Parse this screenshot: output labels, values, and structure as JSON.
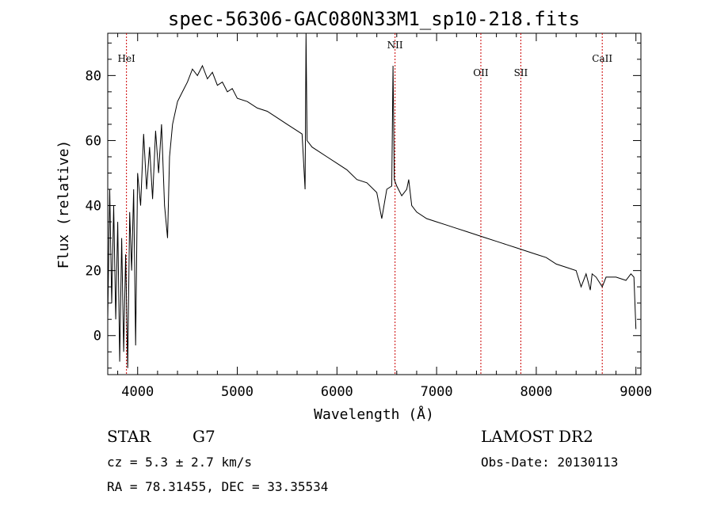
{
  "chart_data": {
    "type": "line",
    "title": "spec-56306-GAC080N33M1_sp10-218.fits",
    "xlabel": "Wavelength (Å)",
    "ylabel": "Flux (relative)",
    "xlim": [
      3700,
      9050
    ],
    "ylim": [
      -12,
      93
    ],
    "x_ticks": [
      4000,
      5000,
      6000,
      7000,
      8000,
      9000
    ],
    "y_ticks": [
      0,
      20,
      40,
      60,
      80
    ],
    "x_tick_labels": [
      "4000",
      "5000",
      "6000",
      "7000",
      "8000",
      "9000"
    ],
    "y_tick_labels": [
      "0",
      "20",
      "40",
      "60",
      "80"
    ],
    "series": [
      {
        "x": [
          3700,
          3720,
          3740,
          3760,
          3780,
          3800,
          3820,
          3840,
          3860,
          3880,
          3900,
          3920,
          3940,
          3960,
          3980,
          4000,
          4030,
          4060,
          4090,
          4120,
          4150,
          4180,
          4210,
          4240,
          4270,
          4300,
          4320,
          4350,
          4400,
          4450,
          4500,
          4550,
          4600,
          4650,
          4700,
          4750,
          4800,
          4850,
          4900,
          4950,
          5000,
          5100,
          5200,
          5300,
          5400,
          5500,
          5600,
          5650,
          5680,
          5690,
          5700,
          5750,
          5800,
          5900,
          6000,
          6100,
          6200,
          6300,
          6400,
          6450,
          6500,
          6550,
          6563,
          6575,
          6600,
          6650,
          6700,
          6720,
          6750,
          6800,
          6900,
          7000,
          7100,
          7200,
          7300,
          7400,
          7500,
          7600,
          7700,
          7800,
          7900,
          8000,
          8100,
          8200,
          8300,
          8400,
          8450,
          8500,
          8542,
          8560,
          8600,
          8662,
          8700,
          8800,
          8900,
          8950,
          8980,
          9000
        ],
        "y": [
          5,
          45,
          10,
          40,
          5,
          35,
          -8,
          30,
          -5,
          25,
          -10,
          38,
          20,
          45,
          -3,
          50,
          40,
          62,
          45,
          58,
          42,
          63,
          50,
          65,
          40,
          30,
          55,
          65,
          72,
          75,
          78,
          82,
          80,
          83,
          79,
          81,
          77,
          78,
          75,
          76,
          73,
          72,
          70,
          69,
          67,
          65,
          63,
          62,
          45,
          95,
          60,
          58,
          57,
          55,
          53,
          51,
          48,
          47,
          44,
          36,
          45,
          46,
          83,
          48,
          46,
          43,
          45,
          48,
          40,
          38,
          36,
          35,
          34,
          33,
          32,
          31,
          30,
          29,
          28,
          27,
          26,
          25,
          24,
          22,
          21,
          20,
          15,
          19,
          14,
          19,
          18,
          15,
          18,
          18,
          17,
          19,
          18,
          2
        ]
      }
    ],
    "annotations": [
      {
        "label": "HeI",
        "x": 3888
      },
      {
        "label": "NII",
        "x": 6583
      },
      {
        "label": "OII",
        "x": 7444
      },
      {
        "label": "SII",
        "x": 7845
      },
      {
        "label": "CaII",
        "x": 8662
      }
    ],
    "grid": false,
    "line_color": "#000000",
    "marker_color": "#cc0000"
  },
  "info": {
    "object_class": "STAR",
    "subclass": "G7",
    "survey": "LAMOST DR2",
    "cz": "cz = 5.3 ± 2.7 km/s",
    "obs_date": "Obs-Date: 20130113",
    "coords": "RA =  78.31455, DEC =  33.35534"
  }
}
